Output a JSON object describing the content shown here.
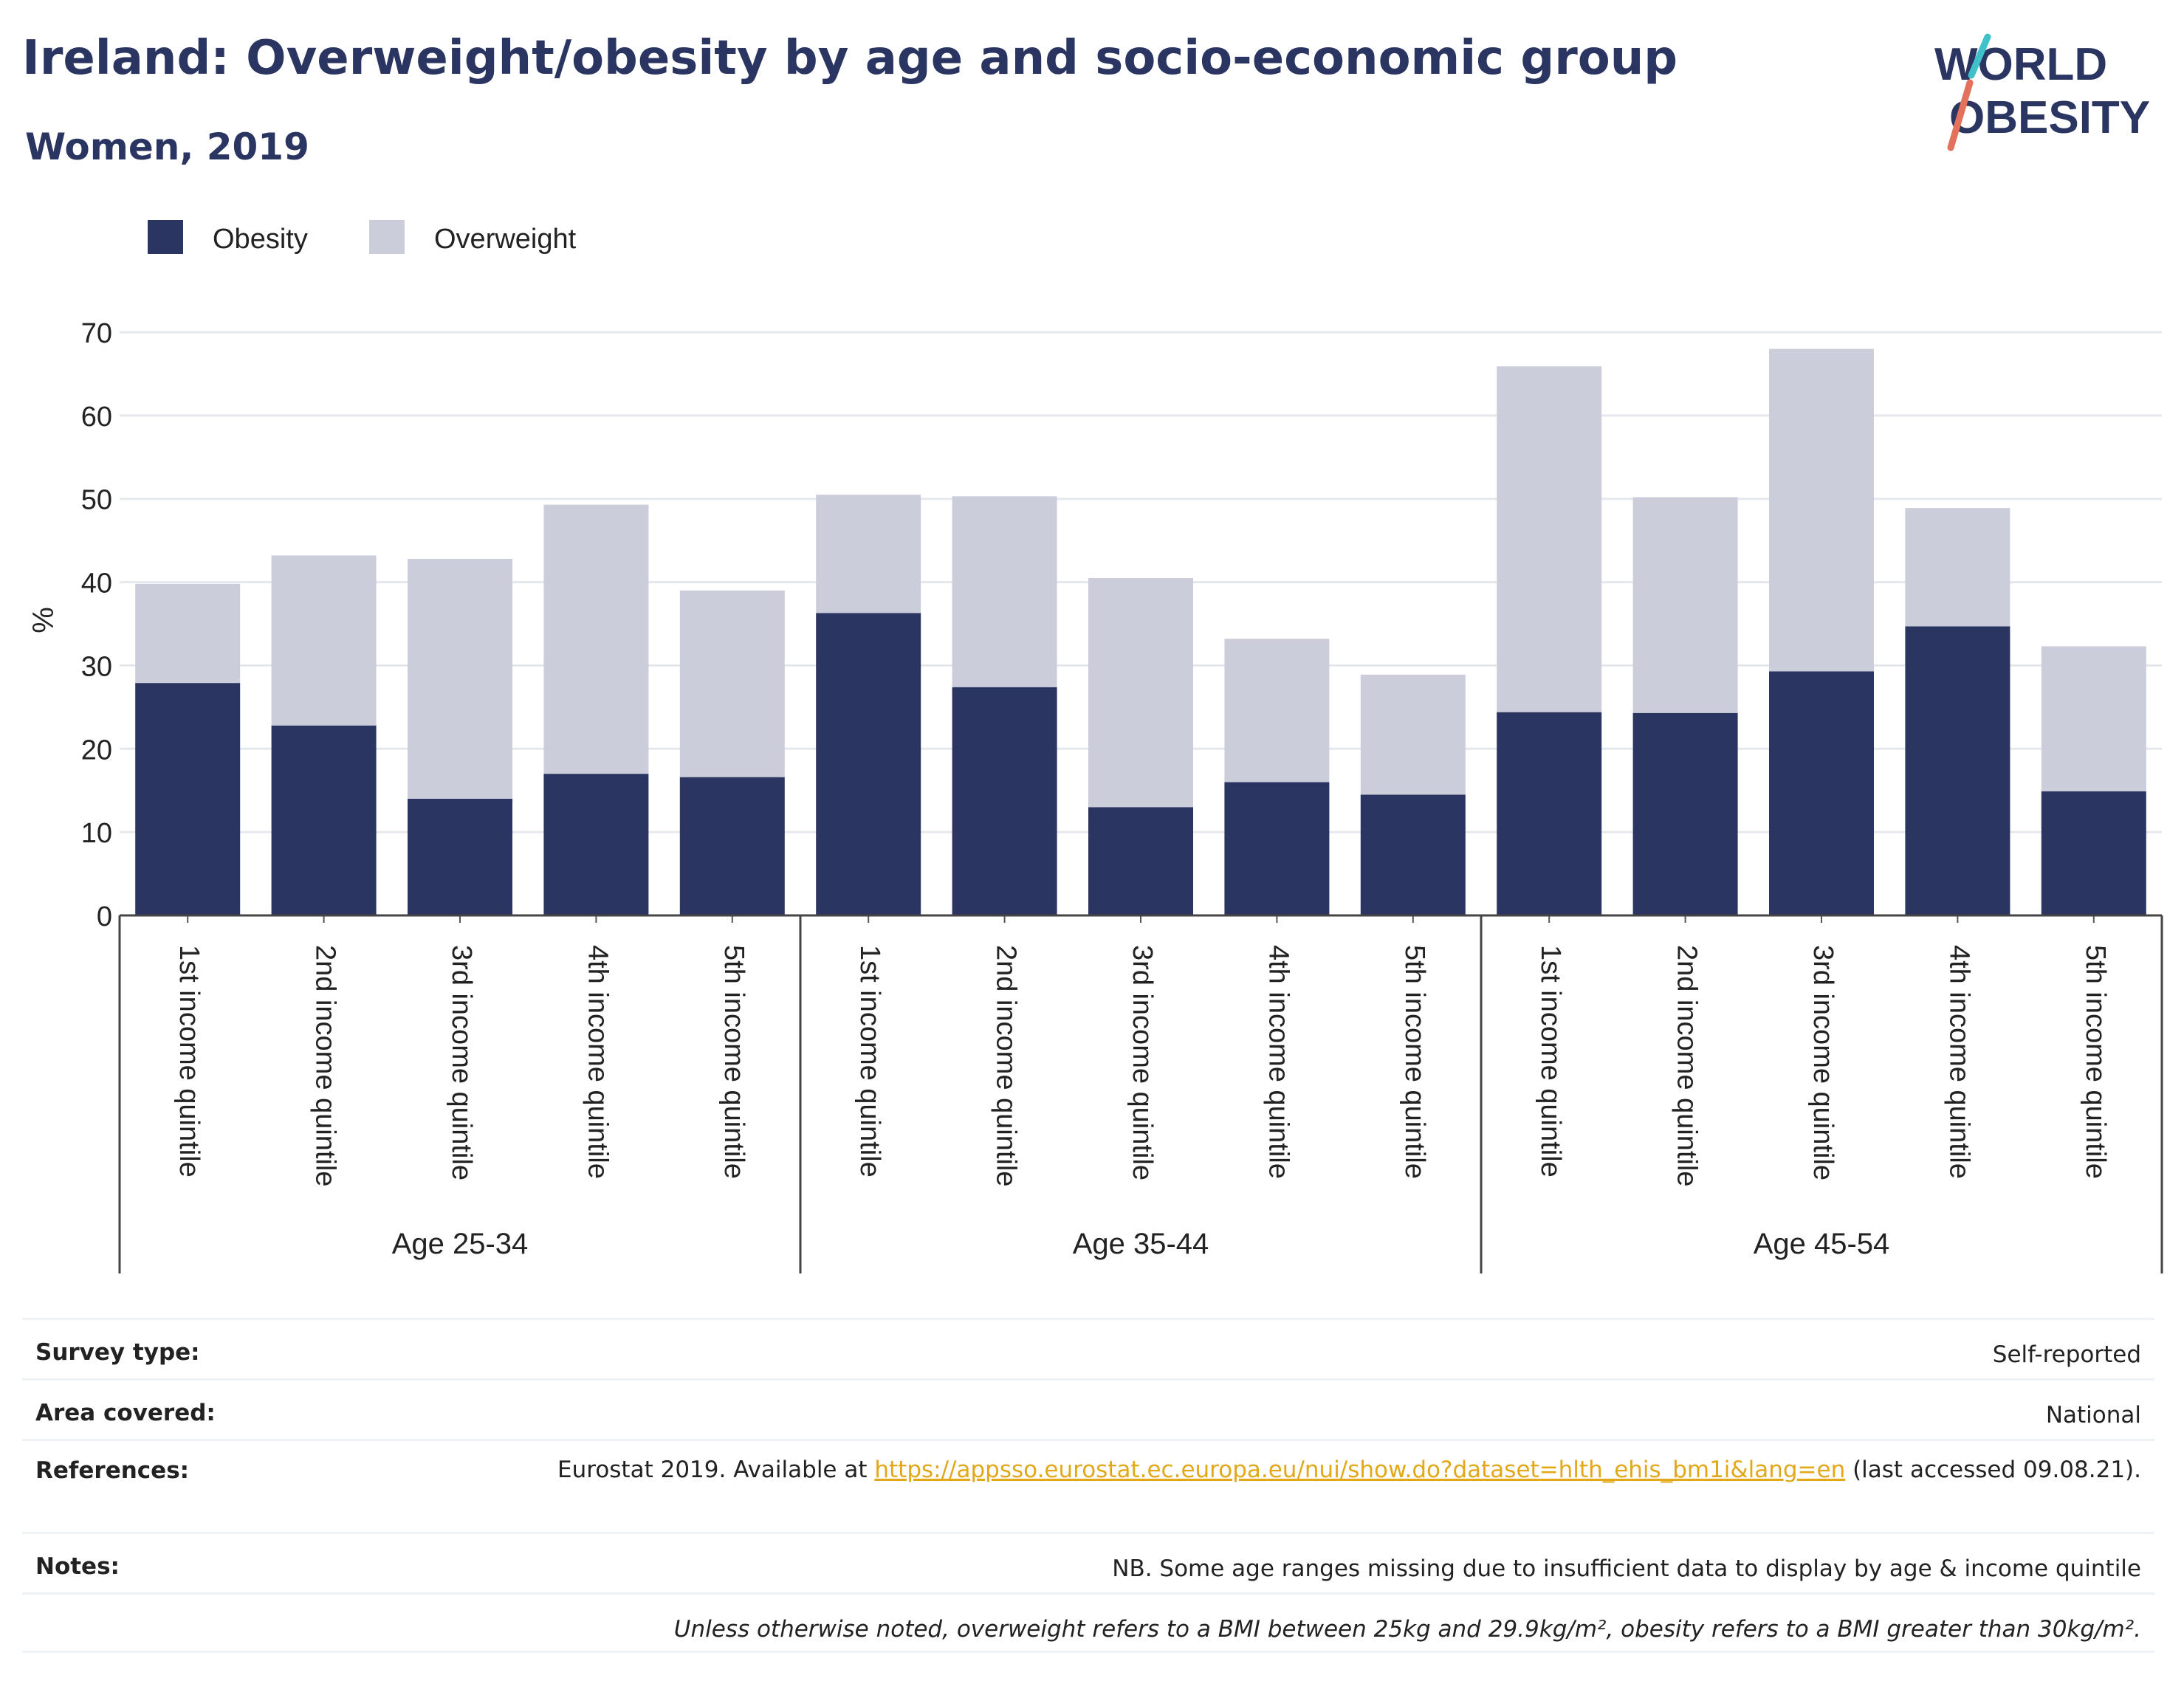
{
  "header": {
    "title": "Ireland: Overweight/obesity by age and socio-economic group",
    "subtitle": "Women, 2019"
  },
  "logo": {
    "line1": "WORLD",
    "line2": "OBESITY",
    "accent_colors": [
      "#3ec1c9",
      "#e2725b"
    ]
  },
  "colors": {
    "obesity": "#2b3561",
    "overweight": "#cbcdda",
    "title": "#2b3561",
    "link": "#e3a818"
  },
  "chart_data": {
    "type": "bar",
    "stacked": true,
    "ylabel": "%",
    "ylim": [
      0,
      70
    ],
    "yticks": [
      0,
      10,
      20,
      30,
      40,
      50,
      60,
      70
    ],
    "grid": true,
    "legend_position": "top-left",
    "series": [
      {
        "name": "Obesity",
        "color": "#2b3561",
        "values": [
          27.9,
          22.8,
          14.0,
          17.0,
          16.6,
          36.3,
          27.4,
          13.0,
          16.0,
          14.5,
          24.4,
          24.3,
          29.3,
          34.7,
          14.9
        ]
      },
      {
        "name": "Overweight",
        "color": "#cbcdda",
        "values": [
          11.9,
          20.4,
          28.8,
          32.3,
          22.4,
          14.2,
          22.9,
          27.5,
          17.2,
          14.4,
          41.5,
          25.9,
          38.7,
          14.2,
          17.4
        ]
      }
    ],
    "groups": [
      {
        "label": "Age 25-34",
        "categories": [
          "1st income quintile",
          "2nd income quintile",
          "3rd income quintile",
          "4th income quintile",
          "5th income quintile"
        ]
      },
      {
        "label": "Age 35-44",
        "categories": [
          "1st income quintile",
          "2nd income quintile",
          "3rd income quintile",
          "4th income quintile",
          "5th income quintile"
        ]
      },
      {
        "label": "Age 45-54",
        "categories": [
          "1st income quintile",
          "2nd income quintile",
          "3rd income quintile",
          "4th income quintile",
          "5th income quintile"
        ]
      }
    ]
  },
  "info": {
    "survey_label": "Survey type:",
    "survey_value": "Self-reported",
    "area_label": "Area covered:",
    "area_value": "National",
    "references_label": "References:",
    "references_prefix": "Eurostat 2019. Available at",
    "references_link": "https://appsso.eurostat.ec.europa.eu/nui/show.do?dataset=hlth_ehis_bm1i&lang=en",
    "references_suffix": "(last accessed 09.08.21).",
    "notes_label": "Notes:",
    "notes_value": "NB. Some age ranges missing due to insufficient data to display by age & income quintile",
    "footnote": "Unless otherwise noted, overweight refers to a BMI between 25kg and 29.9kg/m², obesity refers to a BMI greater than 30kg/m²."
  }
}
